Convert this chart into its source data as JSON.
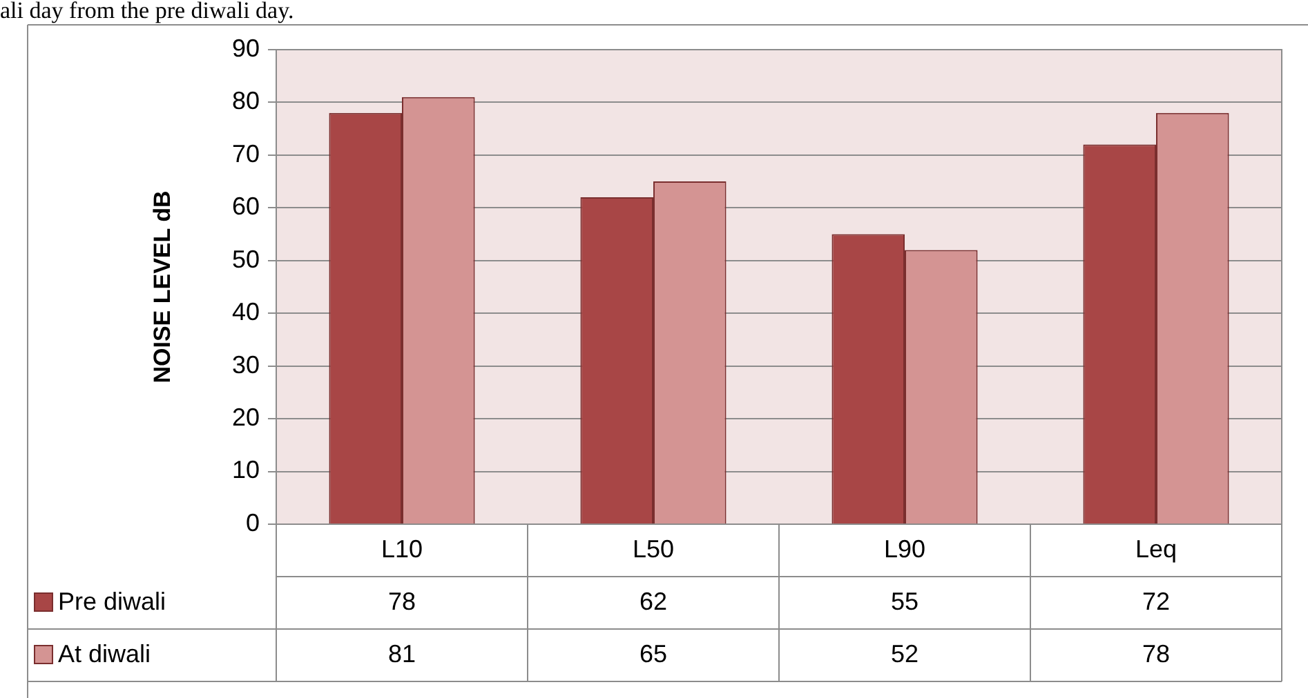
{
  "chart_data": {
    "type": "bar",
    "ylabel": "NOISE LEVEL dB",
    "categories": [
      "L10",
      "L50",
      "L90",
      "Leq"
    ],
    "series": [
      {
        "name": "Pre diwali",
        "color": "#a84646",
        "values": [
          78,
          62,
          55,
          72
        ]
      },
      {
        "name": "At diwali",
        "color": "#d49493",
        "values": [
          81,
          65,
          52,
          78
        ]
      }
    ],
    "ylim": [
      0,
      90
    ],
    "yticks": [
      0,
      10,
      20,
      30,
      40,
      50,
      60,
      70,
      80,
      90
    ],
    "grid": "y",
    "legend": "bottom",
    "data_labels": true,
    "annotations": [
      "ali day from the pre diwali day."
    ]
  }
}
